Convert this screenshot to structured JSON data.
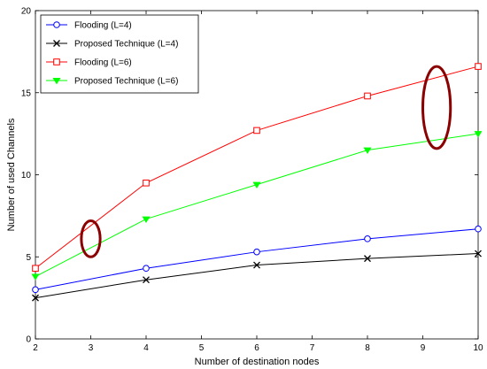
{
  "chart_data": {
    "type": "line",
    "xlabel": "Number of destination nodes",
    "ylabel": "Number of used Channels",
    "xlim": [
      2,
      10
    ],
    "ylim": [
      0,
      20
    ],
    "xticks": [
      "2",
      "3",
      "4",
      "5",
      "6",
      "7",
      "8",
      "9",
      "10"
    ],
    "yticks": [
      "0",
      "5",
      "10",
      "15",
      "20"
    ],
    "legend_position": "top-left",
    "grid": false,
    "x": [
      2,
      4,
      6,
      8,
      10
    ],
    "series": [
      {
        "name": "Flooding (L=4)",
        "color": "#0000ff",
        "marker": "circle",
        "values": [
          3.0,
          4.3,
          5.3,
          6.1,
          6.7
        ]
      },
      {
        "name": "Proposed Technique (L=4)",
        "color": "#000000",
        "marker": "x",
        "values": [
          2.5,
          3.6,
          4.5,
          4.9,
          5.2
        ]
      },
      {
        "name": "Flooding (L=6)",
        "color": "#ff0000",
        "marker": "square",
        "values": [
          4.3,
          9.5,
          12.7,
          14.8,
          16.6
        ]
      },
      {
        "name": "Proposed Technique (L=6)",
        "color": "#00ff00",
        "marker": "triangle-down",
        "values": [
          3.8,
          7.3,
          9.4,
          11.5,
          12.5
        ]
      }
    ],
    "annotations": [
      {
        "shape": "ellipse",
        "color": "#8b0000",
        "cx": 3.0,
        "cy": 6.1,
        "rx": 0.17,
        "ry": 1.1
      },
      {
        "shape": "ellipse",
        "color": "#8b0000",
        "cx": 9.25,
        "cy": 14.1,
        "rx": 0.25,
        "ry": 2.5
      }
    ]
  }
}
